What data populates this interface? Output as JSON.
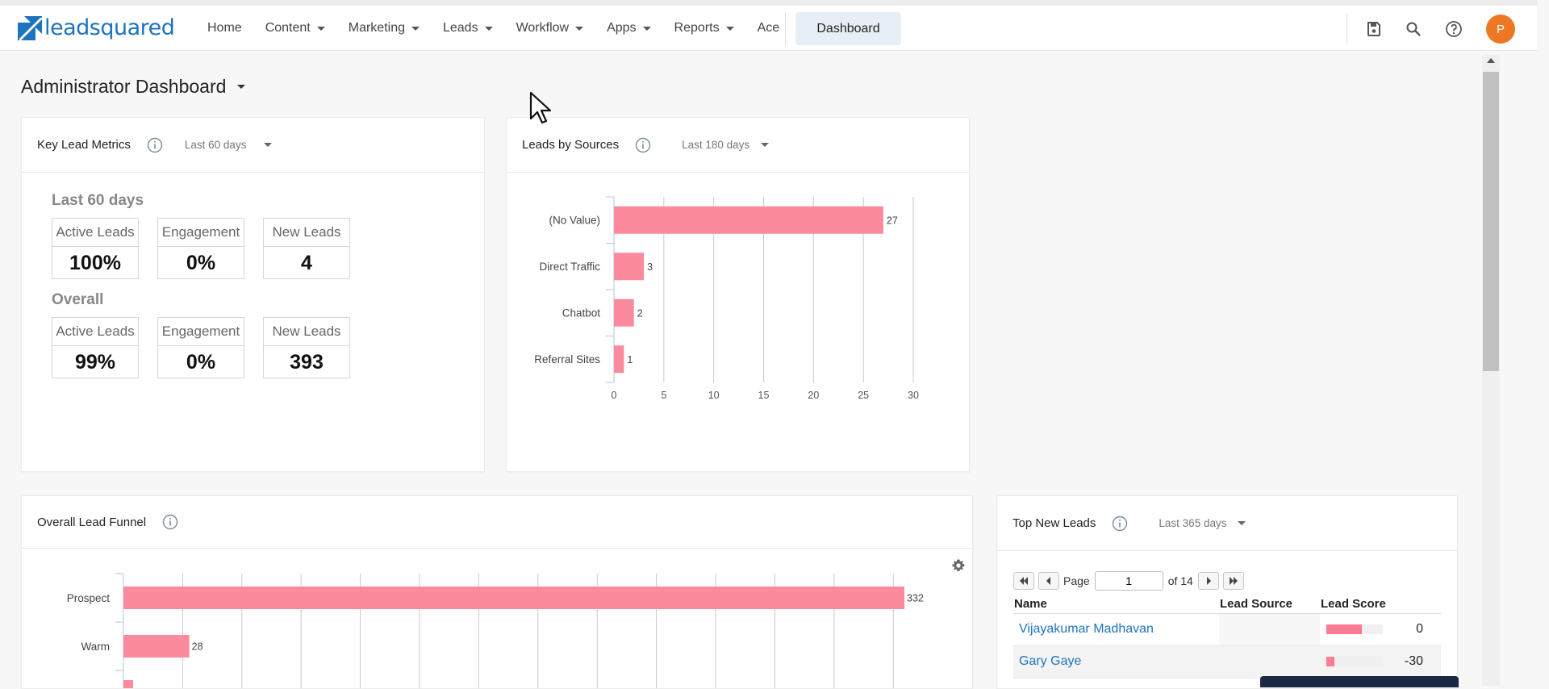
{
  "brand": {
    "name": "leadsquared",
    "logo_color": "#1e73be"
  },
  "nav": {
    "items": [
      {
        "label": "Home",
        "dropdown": false
      },
      {
        "label": "Content",
        "dropdown": true
      },
      {
        "label": "Marketing",
        "dropdown": true
      },
      {
        "label": "Leads",
        "dropdown": true
      },
      {
        "label": "Workflow",
        "dropdown": true
      },
      {
        "label": "Apps",
        "dropdown": true
      },
      {
        "label": "Reports",
        "dropdown": true
      },
      {
        "label": "Ace",
        "dropdown": false
      }
    ],
    "active_button": "Dashboard"
  },
  "toolbar": {
    "icons": [
      "save-icon",
      "search-icon",
      "help-icon"
    ],
    "avatar_initial": "P",
    "avatar_color": "#ee7724"
  },
  "page": {
    "title": "Administrator Dashboard"
  },
  "key_lead_metrics": {
    "title": "Key Lead Metrics",
    "period": "Last 60 days",
    "sections": [
      {
        "label": "Last 60 days",
        "metrics": [
          {
            "label": "Active Leads",
            "value": "100%"
          },
          {
            "label": "Engagement",
            "value": "0%"
          },
          {
            "label": "New Leads",
            "value": "4"
          }
        ]
      },
      {
        "label": "Overall",
        "metrics": [
          {
            "label": "Active Leads",
            "value": "99%"
          },
          {
            "label": "Engagement",
            "value": "0%"
          },
          {
            "label": "New Leads",
            "value": "393"
          }
        ]
      }
    ]
  },
  "leads_by_sources": {
    "title": "Leads by Sources",
    "period": "Last 180 days"
  },
  "overall_lead_funnel": {
    "title": "Overall Lead Funnel"
  },
  "top_new_leads": {
    "title": "Top New Leads",
    "period": "Last 365 days",
    "pager": {
      "page_label": "Page",
      "page": "1",
      "of_label": "of 14"
    },
    "columns": [
      "Name",
      "Lead Source",
      "Lead Score"
    ],
    "rows": [
      {
        "name": "Vijayakumar Madhavan",
        "source": "",
        "score": "0",
        "score_value": 0
      },
      {
        "name": "Gary Gaye",
        "source": "",
        "score": "-30",
        "score_value": -30
      }
    ]
  },
  "chart_data": [
    {
      "type": "bar",
      "orientation": "horizontal",
      "title": "Leads by Sources",
      "categories": [
        "(No Value)",
        "Direct Traffic",
        "Chatbot",
        "Referral Sites"
      ],
      "values": [
        27,
        3,
        2,
        1
      ],
      "xlim": [
        0,
        30
      ],
      "xticks": [
        0,
        5,
        10,
        15,
        20,
        25,
        30
      ],
      "grid": true,
      "color": "#fb8a9c"
    },
    {
      "type": "bar",
      "orientation": "horizontal",
      "title": "Overall Lead Funnel",
      "categories": [
        "Prospect",
        "Warm"
      ],
      "values": [
        332,
        28
      ],
      "grid": true,
      "color": "#fb8a9c"
    }
  ]
}
